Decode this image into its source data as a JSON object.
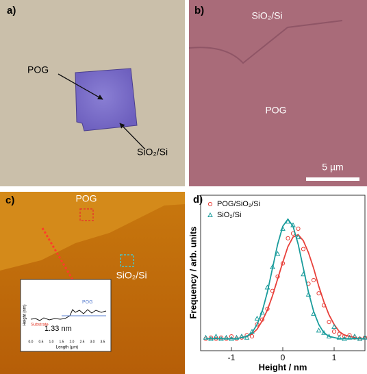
{
  "panels": {
    "a": {
      "label": "a)",
      "pog": "POG",
      "substrate": "SiO₂/Si"
    },
    "b": {
      "label": "b)",
      "substrate": "SiO₂/Si",
      "pog": "POG",
      "scale": "5 µm"
    },
    "c": {
      "label": "c)",
      "pog": "POG",
      "substrate": "SiO₂/Si",
      "inset": {
        "step": "1.33 nm",
        "pog": "POG",
        "substrate": "Substrate",
        "ylabel": "Height (nm)",
        "xlabel": "Length (µm)",
        "xticks": [
          "0.0",
          "0.5",
          "1.0",
          "1.5",
          "2.0",
          "2.5",
          "3.0",
          "3.5"
        ]
      }
    },
    "d": {
      "label": "d)"
    }
  },
  "chart_data": {
    "type": "scatter",
    "xlabel": "Height / nm",
    "ylabel": "Frequency / arb. units",
    "x": [
      -1.5,
      -1.4,
      -1.3,
      -1.2,
      -1.1,
      -1.0,
      -0.9,
      -0.8,
      -0.7,
      -0.6,
      -0.5,
      -0.4,
      -0.3,
      -0.2,
      -0.1,
      0,
      0.1,
      0.2,
      0.3,
      0.4,
      0.5,
      0.6,
      0.7,
      0.8,
      0.9,
      1.0,
      1.1,
      1.2,
      1.3,
      1.4,
      1.5,
      1.6
    ],
    "xlim": [
      -1.6,
      1.6
    ],
    "xticks": [
      -1,
      0,
      1
    ],
    "ylim": [
      -0.1,
      1.2
    ],
    "legend": "upper left",
    "series": [
      {
        "name": "POG/SiO₂/Si",
        "color": "#e8403a",
        "marker": "circle",
        "values": [
          0,
          0.01,
          0,
          0.01,
          0,
          0.02,
          0,
          0.01,
          0.03,
          0.02,
          0.12,
          0.16,
          0.25,
          0.4,
          0.52,
          0.63,
          0.84,
          0.88,
          0.92,
          0.75,
          0.46,
          0.49,
          0.38,
          0.28,
          0.14,
          0.06,
          0.04,
          0.02,
          0.03,
          0.01,
          0,
          0.01
        ],
        "fit": [
          0,
          0,
          0,
          0,
          0,
          0,
          0,
          0.01,
          0.02,
          0.04,
          0.08,
          0.15,
          0.24,
          0.36,
          0.5,
          0.64,
          0.77,
          0.85,
          0.87,
          0.82,
          0.72,
          0.59,
          0.44,
          0.31,
          0.2,
          0.12,
          0.06,
          0.03,
          0.02,
          0.01,
          0,
          0
        ]
      },
      {
        "name": "SiO₂/Si",
        "color": "#1a9c9c",
        "marker": "triangle",
        "values": [
          0.01,
          0,
          0.02,
          0,
          0.01,
          0,
          0.01,
          0.02,
          0.01,
          0.06,
          0.17,
          0.22,
          0.43,
          0.6,
          0.71,
          0.92,
          0.98,
          0.95,
          0.85,
          0.54,
          0.37,
          0.21,
          0.07,
          0.05,
          0.02,
          0.1,
          0.01,
          0,
          0.01,
          0.02,
          0,
          0.01
        ],
        "fit": [
          0,
          0,
          0,
          0,
          0,
          0,
          0,
          0.01,
          0.02,
          0.05,
          0.12,
          0.23,
          0.39,
          0.59,
          0.79,
          0.94,
          1.0,
          0.94,
          0.79,
          0.59,
          0.39,
          0.23,
          0.12,
          0.05,
          0.02,
          0.01,
          0,
          0,
          0,
          0,
          0,
          0
        ]
      }
    ]
  }
}
